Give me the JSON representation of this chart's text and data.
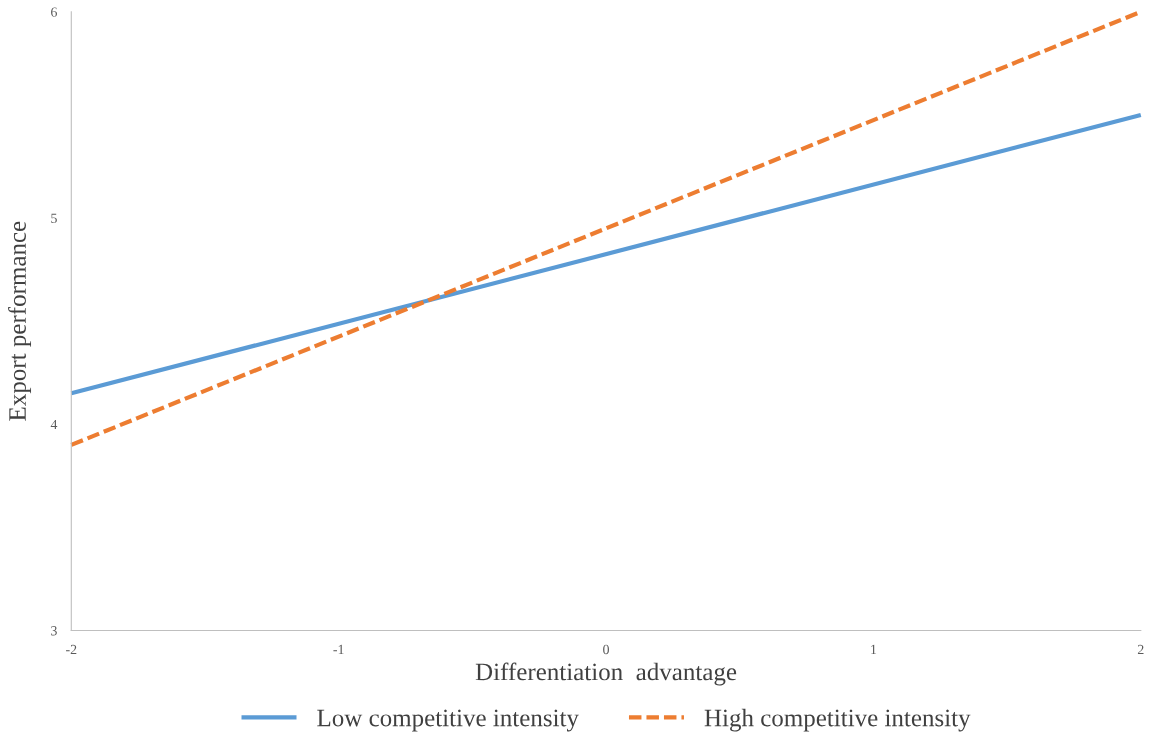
{
  "chart_data": {
    "type": "line",
    "xlabel": "Differentiation  advantage",
    "ylabel": "Export performance",
    "x": [
      -2,
      2
    ],
    "xlim": [
      -2,
      2
    ],
    "xticks": [
      -2,
      -1,
      0,
      1,
      2
    ],
    "ylim": [
      3,
      6
    ],
    "yticks": [
      3,
      4,
      5,
      6
    ],
    "grid": false,
    "legend": "bottom",
    "marker": "none",
    "series": [
      {
        "name": "Low competitive intensity",
        "color": "#5b9bd5",
        "values": [
          4.15,
          5.5
        ],
        "line_style": "solid"
      },
      {
        "name": "High competitive intensity",
        "color": "#ed7d31",
        "values": [
          3.9,
          6.0
        ],
        "line_style": "dashed"
      }
    ]
  }
}
